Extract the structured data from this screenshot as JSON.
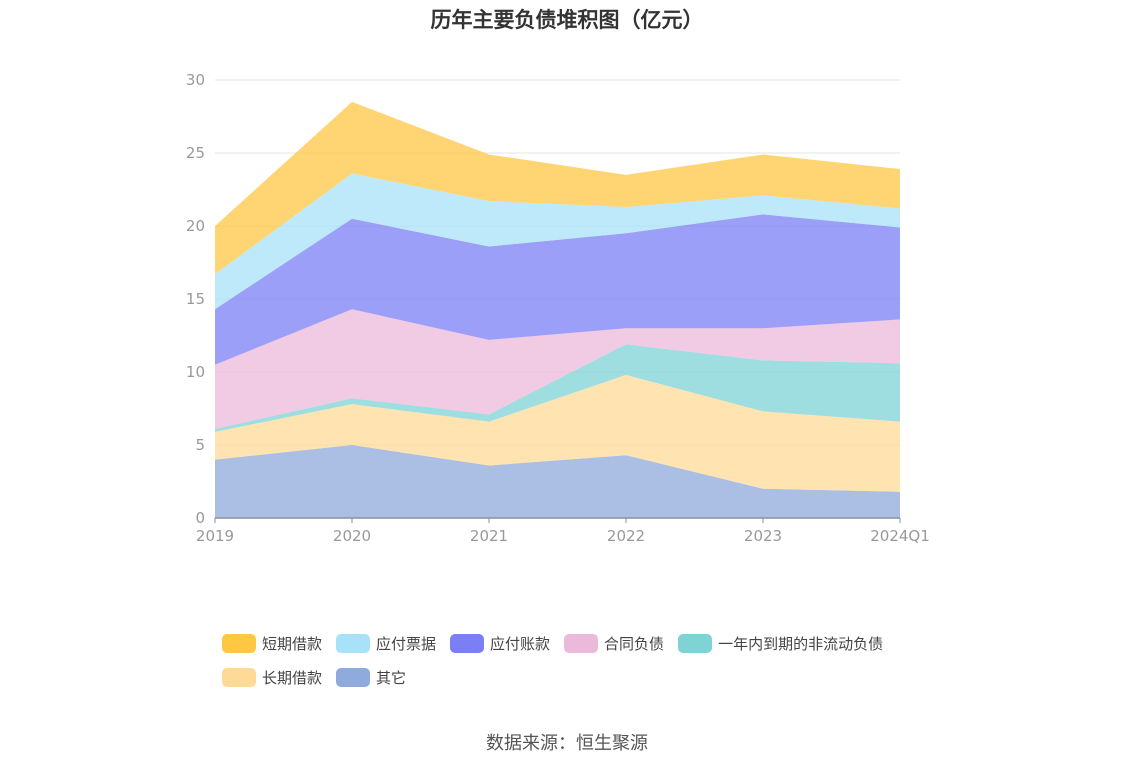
{
  "chart_data": {
    "type": "area",
    "stacked": true,
    "title": "历年主要负债堆积图（亿元）",
    "categories": [
      "2019",
      "2020",
      "2021",
      "2022",
      "2023",
      "2024Q1"
    ],
    "ylim": [
      0,
      30
    ],
    "yticks": [
      "0",
      "5",
      "10",
      "15",
      "20",
      "25",
      "30"
    ],
    "grid": true,
    "legend_position": "bottom",
    "series": [
      {
        "name": "其它",
        "color": "#8faadc",
        "values": [
          4.0,
          5.0,
          3.6,
          4.3,
          2.0,
          1.8
        ]
      },
      {
        "name": "长期借款",
        "color": "#ffd997",
        "values": [
          1.9,
          2.8,
          3.0,
          5.5,
          5.3,
          4.8
        ]
      },
      {
        "name": "一年内到期的非流动负债",
        "color": "#7fd3d5",
        "values": [
          0.2,
          0.4,
          0.5,
          2.1,
          3.5,
          4.0
        ]
      },
      {
        "name": "合同负债",
        "color": "#ebb9da",
        "values": [
          4.4,
          6.1,
          5.1,
          1.1,
          2.2,
          3.0
        ]
      },
      {
        "name": "应付账款",
        "color": "#7b7ff5",
        "values": [
          3.8,
          6.2,
          6.4,
          6.5,
          7.8,
          6.3
        ]
      },
      {
        "name": "应付票据",
        "color": "#a8e2f8",
        "values": [
          2.4,
          3.1,
          3.1,
          1.8,
          1.3,
          1.3
        ]
      },
      {
        "name": "短期借款",
        "color": "#ffc744",
        "values": [
          3.3,
          4.9,
          3.2,
          2.2,
          2.8,
          2.7
        ]
      }
    ]
  },
  "legend": {
    "row1": [
      {
        "label": "短期借款",
        "color": "#ffc744"
      },
      {
        "label": "应付票据",
        "color": "#a8e2f8"
      },
      {
        "label": "应付账款",
        "color": "#7b7ff5"
      },
      {
        "label": "合同负债",
        "color": "#ebb9da"
      },
      {
        "label": "一年内到期的非流动负债",
        "color": "#7fd3d5"
      }
    ],
    "row2": [
      {
        "label": "长期借款",
        "color": "#ffd997"
      },
      {
        "label": "其它",
        "color": "#8faadc"
      }
    ]
  },
  "source": "数据来源：恒生聚源"
}
